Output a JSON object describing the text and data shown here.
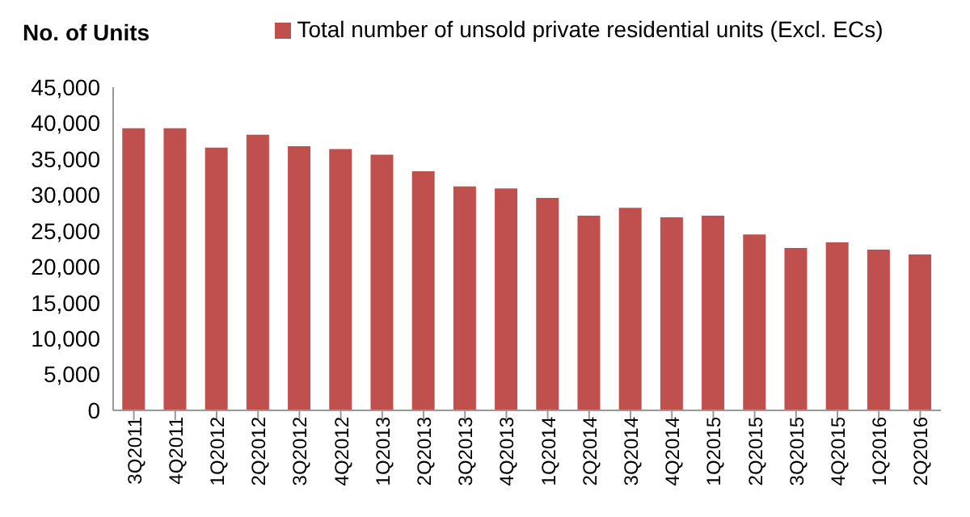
{
  "chart_data": {
    "type": "bar",
    "ylabel": "No. of Units",
    "categories": [
      "3Q2011",
      "4Q2011",
      "1Q2012",
      "2Q2012",
      "3Q2012",
      "4Q2012",
      "1Q2013",
      "2Q2013",
      "3Q2013",
      "4Q2013",
      "1Q2014",
      "2Q2014",
      "3Q2014",
      "4Q2014",
      "1Q2015",
      "2Q2015",
      "3Q2015",
      "4Q2015",
      "1Q2016",
      "2Q2016"
    ],
    "series": [
      {
        "name": "Total number of unsold private residential units (Excl. ECs)",
        "color": "#c0504d",
        "values": [
          39300,
          39300,
          36600,
          38400,
          36800,
          36400,
          35600,
          33300,
          31200,
          30900,
          29600,
          27100,
          28200,
          26900,
          27100,
          24500,
          22600,
          23400,
          22400,
          21700
        ]
      }
    ],
    "ylim": [
      0,
      45000
    ],
    "yticks": [
      {
        "value": 0,
        "label": "0"
      },
      {
        "value": 5000,
        "label": "5,000"
      },
      {
        "value": 10000,
        "label": "10,000"
      },
      {
        "value": 15000,
        "label": "15,000"
      },
      {
        "value": 20000,
        "label": "20,000"
      },
      {
        "value": 25000,
        "label": "25,000"
      },
      {
        "value": 30000,
        "label": "30,000"
      },
      {
        "value": 35000,
        "label": "35,000"
      },
      {
        "value": 40000,
        "label": "40,000"
      },
      {
        "value": 45000,
        "label": "45,000"
      }
    ],
    "grid": false,
    "legend": "top"
  }
}
